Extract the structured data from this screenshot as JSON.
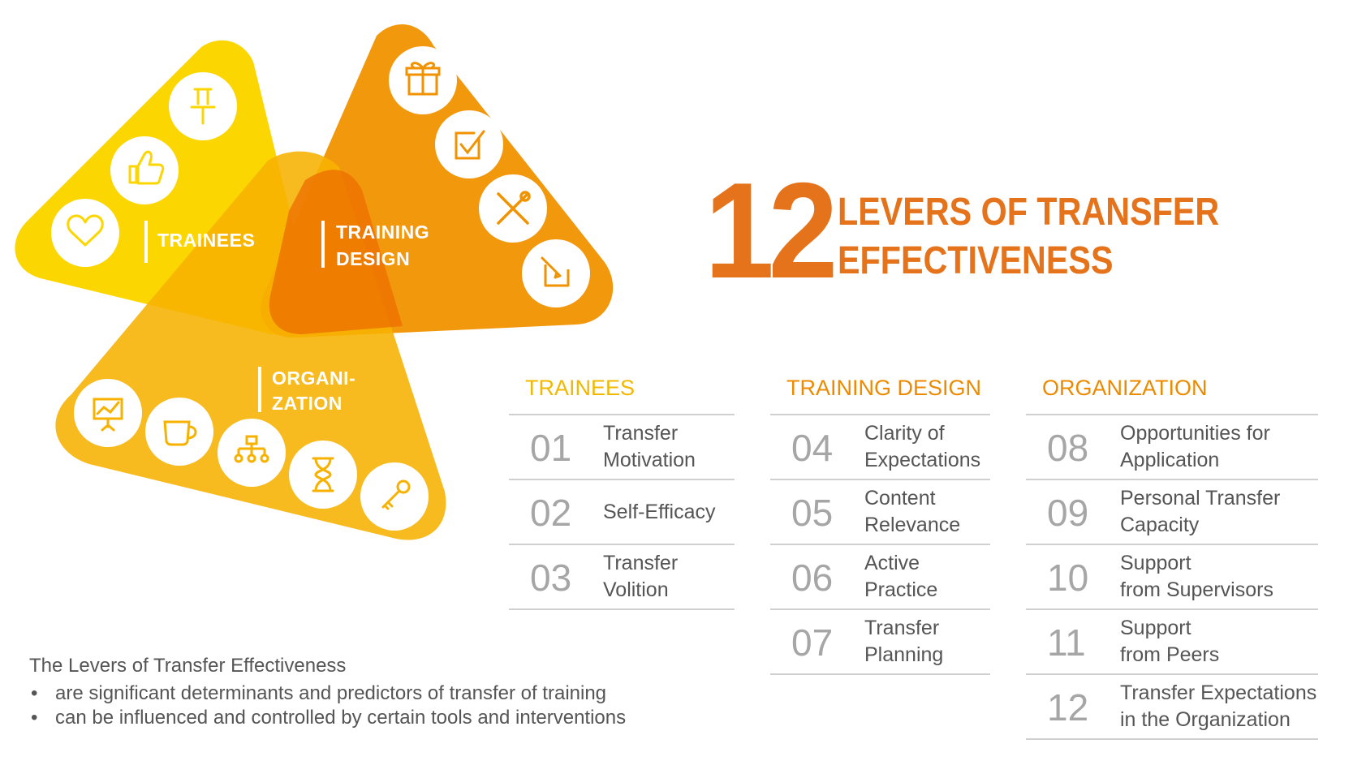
{
  "diagram": {
    "groups": [
      {
        "id": "trainees",
        "label_lines": [
          "TRAINEES"
        ],
        "color": "#fcd600",
        "icons": [
          "pushpin-icon",
          "thumbs-up-icon",
          "heart-icon"
        ]
      },
      {
        "id": "training-design",
        "label_lines": [
          "TRAINING",
          "DESIGN"
        ],
        "color": "#f19200",
        "icons": [
          "gift-icon",
          "checkbox-icon",
          "tools-icon",
          "edit-icon"
        ]
      },
      {
        "id": "organization",
        "label_lines": [
          "ORGANI-",
          "ZATION"
        ],
        "color": "#f7b200",
        "icons": [
          "presentation-chart-icon",
          "coffee-cup-icon",
          "org-chart-icon",
          "hourglass-icon",
          "key-icon"
        ]
      }
    ]
  },
  "title": {
    "number": "12",
    "line1": "LEVERS OF TRANSFER",
    "line2": "EFFECTIVENESS"
  },
  "columns": [
    {
      "heading": "TRAINEES",
      "items": [
        {
          "num": "01",
          "label": "Transfer\nMotivation"
        },
        {
          "num": "02",
          "label": "Self-Efficacy"
        },
        {
          "num": "03",
          "label": "Transfer\nVolition"
        }
      ]
    },
    {
      "heading": "TRAINING DESIGN",
      "items": [
        {
          "num": "04",
          "label": "Clarity of\nExpectations"
        },
        {
          "num": "05",
          "label": "Content\nRelevance"
        },
        {
          "num": "06",
          "label": "Active\nPractice"
        },
        {
          "num": "07",
          "label": "Transfer\nPlanning"
        }
      ]
    },
    {
      "heading": "ORGANIZATION",
      "items": [
        {
          "num": "08",
          "label": "Opportunities for\nApplication"
        },
        {
          "num": "09",
          "label": "Personal Transfer\nCapacity"
        },
        {
          "num": "10",
          "label": "Support\nfrom Supervisors"
        },
        {
          "num": "11",
          "label": "Support\nfrom Peers"
        },
        {
          "num": "12",
          "label": "Transfer Expectations\nin the Organization"
        }
      ]
    }
  ],
  "footnote": {
    "lead": "The Levers of Transfer Effectiveness",
    "bullets": [
      "are significant determinants and predictors of transfer of training",
      "can be influenced and controlled by certain tools and interventions"
    ]
  }
}
